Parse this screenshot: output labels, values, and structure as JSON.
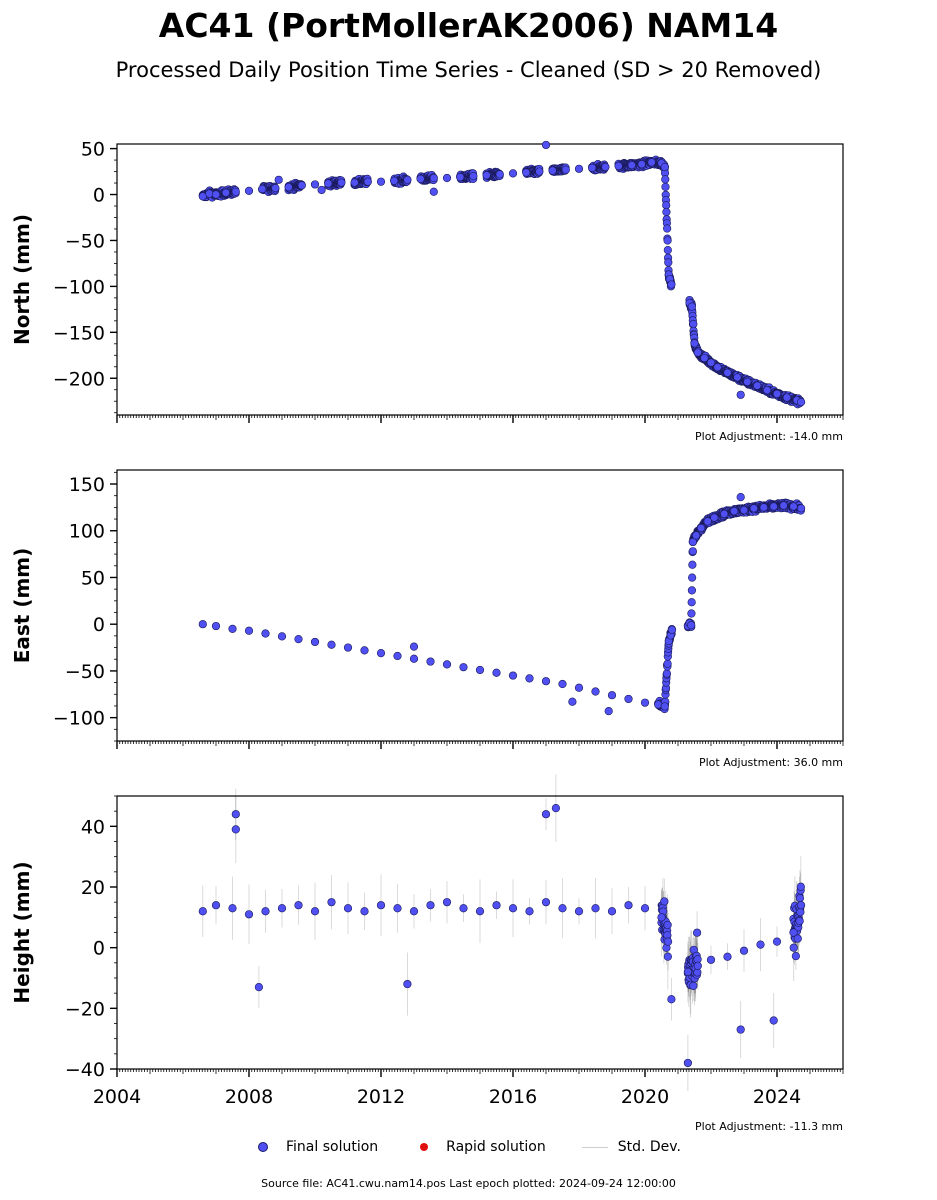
{
  "header": {
    "title": "AC41 (PortMollerAK2006) NAM14",
    "subtitle": "Processed Daily Position Time Series - Cleaned (SD > 20 Removed)"
  },
  "chart_data": [
    {
      "type": "scatter",
      "component": "north",
      "ylabel": "North (mm)",
      "xlim": [
        2004,
        2026
      ],
      "ylim": [
        -240,
        55
      ],
      "yticks": [
        50,
        0,
        -50,
        -100,
        -150,
        -200
      ],
      "adjustment": "Plot Adjustment: -14.0 mm",
      "series": [
        {
          "name": "Final solution",
          "color": "#4f4ff2",
          "values": [
            [
              2006.6,
              -2
            ],
            [
              2006.8,
              1
            ],
            [
              2007.0,
              0
            ],
            [
              2007.3,
              2
            ],
            [
              2007.6,
              3
            ],
            [
              2008.0,
              4
            ],
            [
              2008.4,
              6
            ],
            [
              2008.8,
              7
            ],
            [
              2009.2,
              8
            ],
            [
              2009.6,
              10
            ],
            [
              2010.0,
              11
            ],
            [
              2010.4,
              12
            ],
            [
              2010.8,
              13
            ],
            [
              2011.2,
              13
            ],
            [
              2011.6,
              14
            ],
            [
              2012.0,
              14
            ],
            [
              2012.4,
              15
            ],
            [
              2012.8,
              16
            ],
            [
              2013.2,
              17
            ],
            [
              2013.6,
              18
            ],
            [
              2014.0,
              18
            ],
            [
              2014.4,
              19
            ],
            [
              2014.8,
              20
            ],
            [
              2015.2,
              21
            ],
            [
              2015.6,
              22
            ],
            [
              2016.0,
              23
            ],
            [
              2016.4,
              24
            ],
            [
              2016.8,
              25
            ],
            [
              2017.2,
              26
            ],
            [
              2017.6,
              27
            ],
            [
              2018.0,
              28
            ],
            [
              2018.4,
              29
            ],
            [
              2018.8,
              30
            ],
            [
              2019.2,
              31
            ],
            [
              2019.6,
              32
            ],
            [
              2019.9,
              33
            ],
            [
              2020.2,
              35
            ],
            [
              2020.5,
              34
            ],
            [
              2020.6,
              30
            ],
            [
              2020.72,
              -87
            ],
            [
              2020.75,
              -92
            ],
            [
              2020.8,
              -98
            ],
            [
              2021.35,
              -118
            ],
            [
              2021.42,
              -122
            ],
            [
              2021.5,
              -162
            ],
            [
              2021.6,
              -172
            ],
            [
              2021.8,
              -178
            ],
            [
              2022.0,
              -183
            ],
            [
              2022.2,
              -188
            ],
            [
              2022.5,
              -194
            ],
            [
              2022.8,
              -199
            ],
            [
              2023.1,
              -204
            ],
            [
              2023.4,
              -208
            ],
            [
              2023.7,
              -213
            ],
            [
              2024.0,
              -217
            ],
            [
              2024.3,
              -221
            ],
            [
              2024.6,
              -224
            ],
            [
              2024.73,
              -226
            ]
          ],
          "outliers": [
            [
              2017.0,
              54
            ],
            [
              2013.6,
              3
            ],
            [
              2010.2,
              5
            ],
            [
              2008.9,
              16
            ],
            [
              2022.9,
              -218
            ]
          ]
        }
      ]
    },
    {
      "type": "scatter",
      "component": "east",
      "ylabel": "East (mm)",
      "xlim": [
        2004,
        2026
      ],
      "ylim": [
        -125,
        165
      ],
      "yticks": [
        150,
        100,
        50,
        0,
        -50,
        -100
      ],
      "adjustment": "Plot Adjustment: 36.0 mm",
      "series": [
        {
          "name": "Final solution",
          "color": "#4f4ff2",
          "values": [
            [
              2006.6,
              0
            ],
            [
              2007.0,
              -2
            ],
            [
              2007.5,
              -5
            ],
            [
              2008.0,
              -7
            ],
            [
              2008.5,
              -10
            ],
            [
              2009.0,
              -13
            ],
            [
              2009.5,
              -16
            ],
            [
              2010.0,
              -19
            ],
            [
              2010.5,
              -22
            ],
            [
              2011.0,
              -25
            ],
            [
              2011.5,
              -28
            ],
            [
              2012.0,
              -31
            ],
            [
              2012.5,
              -34
            ],
            [
              2013.0,
              -37
            ],
            [
              2013.5,
              -40
            ],
            [
              2014.0,
              -43
            ],
            [
              2014.5,
              -46
            ],
            [
              2015.0,
              -49
            ],
            [
              2015.5,
              -52
            ],
            [
              2016.0,
              -55
            ],
            [
              2016.5,
              -58
            ],
            [
              2017.0,
              -61
            ],
            [
              2017.5,
              -64
            ],
            [
              2018.0,
              -68
            ],
            [
              2018.5,
              -72
            ],
            [
              2019.0,
              -76
            ],
            [
              2019.5,
              -80
            ],
            [
              2020.0,
              -84
            ],
            [
              2020.4,
              -86
            ],
            [
              2020.6,
              -88
            ],
            [
              2020.72,
              -18
            ],
            [
              2020.78,
              -12
            ],
            [
              2020.82,
              -6
            ],
            [
              2021.3,
              -2
            ],
            [
              2021.35,
              1
            ],
            [
              2021.4,
              -1
            ],
            [
              2021.45,
              88
            ],
            [
              2021.55,
              95
            ],
            [
              2021.7,
              103
            ],
            [
              2021.9,
              110
            ],
            [
              2022.1,
              114
            ],
            [
              2022.4,
              118
            ],
            [
              2022.7,
              121
            ],
            [
              2023.0,
              122
            ],
            [
              2023.3,
              124
            ],
            [
              2023.6,
              125
            ],
            [
              2023.9,
              126
            ],
            [
              2024.2,
              127
            ],
            [
              2024.5,
              126
            ],
            [
              2024.73,
              124
            ]
          ],
          "outliers": [
            [
              2021.45,
              78
            ],
            [
              2022.9,
              136
            ],
            [
              2018.9,
              -93
            ],
            [
              2017.8,
              -83
            ],
            [
              2013.0,
              -24
            ]
          ]
        }
      ]
    },
    {
      "type": "scatter",
      "component": "height",
      "ylabel": "Height (mm)",
      "xlabel": "",
      "xlim": [
        2004,
        2026
      ],
      "ylim": [
        -40,
        50
      ],
      "yticks": [
        40,
        20,
        0,
        -20,
        -40
      ],
      "xticks": [
        "2004",
        "2008",
        "2012",
        "2016",
        "2020",
        "2024"
      ],
      "xtick_values": [
        2004,
        2008,
        2012,
        2016,
        2020,
        2024
      ],
      "adjustment": "Plot Adjustment: -11.3 mm",
      "series": [
        {
          "name": "Final solution",
          "color": "#4f4ff2",
          "values": [
            [
              2006.6,
              12
            ],
            [
              2007.0,
              14
            ],
            [
              2007.5,
              13
            ],
            [
              2008.0,
              11
            ],
            [
              2008.5,
              12
            ],
            [
              2009.0,
              13
            ],
            [
              2009.5,
              14
            ],
            [
              2010.0,
              12
            ],
            [
              2010.5,
              15
            ],
            [
              2011.0,
              13
            ],
            [
              2011.5,
              12
            ],
            [
              2012.0,
              14
            ],
            [
              2012.5,
              13
            ],
            [
              2013.0,
              12
            ],
            [
              2013.5,
              14
            ],
            [
              2014.0,
              15
            ],
            [
              2014.5,
              13
            ],
            [
              2015.0,
              12
            ],
            [
              2015.5,
              14
            ],
            [
              2016.0,
              13
            ],
            [
              2016.5,
              12
            ],
            [
              2017.0,
              15
            ],
            [
              2017.5,
              13
            ],
            [
              2018.0,
              12
            ],
            [
              2018.5,
              13
            ],
            [
              2019.0,
              12
            ],
            [
              2019.5,
              14
            ],
            [
              2020.0,
              13
            ],
            [
              2020.5,
              10
            ],
            [
              2020.7,
              2
            ],
            [
              2021.3,
              -8
            ],
            [
              2021.6,
              -6
            ],
            [
              2022.0,
              -4
            ],
            [
              2022.5,
              -3
            ],
            [
              2023.0,
              -1
            ],
            [
              2023.5,
              1
            ],
            [
              2024.0,
              2
            ],
            [
              2024.5,
              5
            ],
            [
              2024.73,
              14
            ]
          ],
          "outliers": [
            [
              2007.6,
              44
            ],
            [
              2007.6,
              39
            ],
            [
              2017.0,
              44
            ],
            [
              2017.3,
              46
            ],
            [
              2021.3,
              -38
            ],
            [
              2020.8,
              -17
            ],
            [
              2022.9,
              -27
            ],
            [
              2008.3,
              -13
            ],
            [
              2012.8,
              -12
            ],
            [
              2023.9,
              -24
            ]
          ]
        }
      ]
    }
  ],
  "legend": {
    "final": "Final solution",
    "final_color": "#4f4ff2",
    "rapid": "Rapid solution",
    "rapid_color": "#e01010",
    "std": "Std. Dev.",
    "std_color": "#cfcfcf"
  },
  "footer": {
    "source": "Source file: AC41.cwu.nam14.pos  Last epoch plotted: 2024-09-24 12:00:00"
  }
}
